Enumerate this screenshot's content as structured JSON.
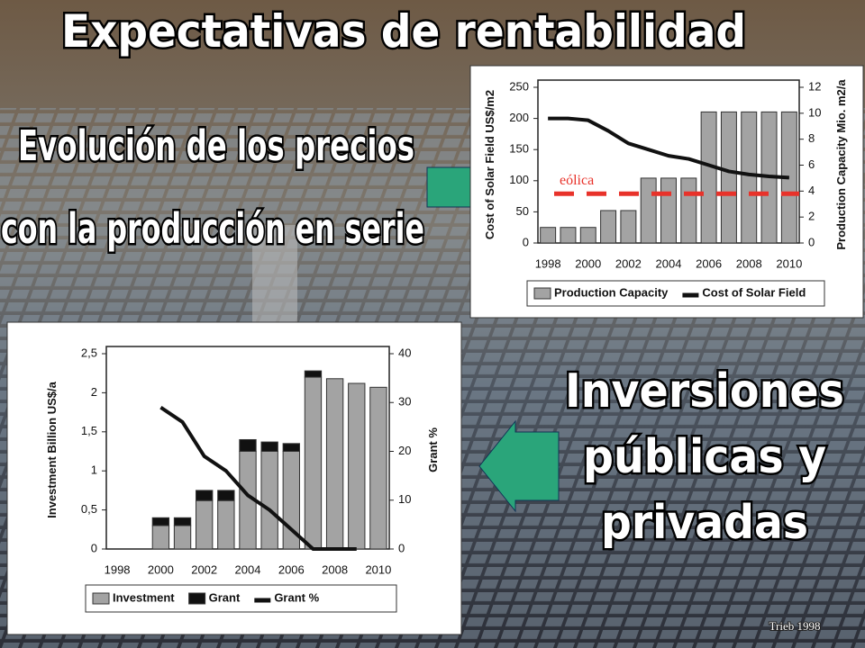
{
  "slide": {
    "title": "Expectativas de rentabilidad",
    "left_heading": [
      "Evolución de los precios",
      "con la producción en serie"
    ],
    "right_heading": [
      "Inversiones",
      "públicas y",
      "privadas"
    ],
    "credit": "Trieb 1998"
  },
  "chart_data": [
    {
      "type": "bar",
      "categories": [
        "1998",
        null,
        "2000",
        null,
        "2002",
        null,
        "2004",
        null,
        "2006",
        null,
        "2008",
        null,
        "2010"
      ],
      "y_label": "Cost of Solar Field  US$/m2",
      "y2_label": "Production Capacity  Mio. m2/a",
      "ylim": [
        0,
        250
      ],
      "yticks": [
        0,
        50,
        100,
        150,
        200,
        250
      ],
      "y2lim": [
        0,
        12
      ],
      "y2ticks": [
        0,
        2,
        4,
        6,
        8,
        10,
        12
      ],
      "grid": false,
      "series": [
        {
          "name": "Production Capacity",
          "type": "bar",
          "axis": "y2",
          "color": "#a3a3a3",
          "values": [
            1.2,
            1.2,
            1.2,
            2.5,
            2.5,
            5.0,
            5.0,
            5.0,
            10.1,
            10.1,
            10.1,
            10.1,
            10.1
          ]
        },
        {
          "name": "Cost of Solar Field",
          "type": "line",
          "color": "#111111",
          "values": [
            200,
            200,
            197,
            180,
            160,
            150,
            140,
            135,
            125,
            115,
            110,
            107,
            105
          ]
        }
      ],
      "reference_line": {
        "label": "eólica",
        "value": 3.8,
        "axis": "y2",
        "color": "#e8322a"
      }
    },
    {
      "type": "bar",
      "stacked": true,
      "categories": [
        "1998",
        null,
        "2000",
        null,
        "2002",
        null,
        "2004",
        null,
        "2006",
        null,
        "2008",
        null,
        "2010"
      ],
      "y_label": "Investment  Billion US$/a",
      "y2_label": "Grant %",
      "ylim": [
        0,
        2.5
      ],
      "yticks": [
        0,
        {
          "value": 0.5,
          "label": "0,5"
        },
        1,
        {
          "value": 1.5,
          "label": "1,5"
        },
        2,
        {
          "value": 2.5,
          "label": "2,5"
        }
      ],
      "y2lim": [
        0,
        40
      ],
      "y2ticks": [
        0,
        10,
        20,
        30,
        40
      ],
      "grid": false,
      "series": [
        {
          "name": "Investment",
          "type": "bar",
          "color": "#a3a3a3",
          "values": [
            null,
            null,
            0.3,
            0.3,
            0.62,
            0.62,
            1.25,
            1.25,
            1.25,
            2.2,
            2.18,
            2.12,
            2.07
          ]
        },
        {
          "name": "Grant",
          "type": "bar",
          "color": "#111111",
          "values": [
            null,
            null,
            0.1,
            0.1,
            0.13,
            0.13,
            0.15,
            0.12,
            0.1,
            0.08,
            0,
            0,
            0
          ]
        },
        {
          "name": "Grant %",
          "type": "line",
          "axis": "y2",
          "color": "#111111",
          "values": [
            null,
            null,
            29,
            26,
            19,
            16,
            11,
            8,
            4,
            0,
            0,
            0,
            null
          ]
        }
      ]
    }
  ]
}
